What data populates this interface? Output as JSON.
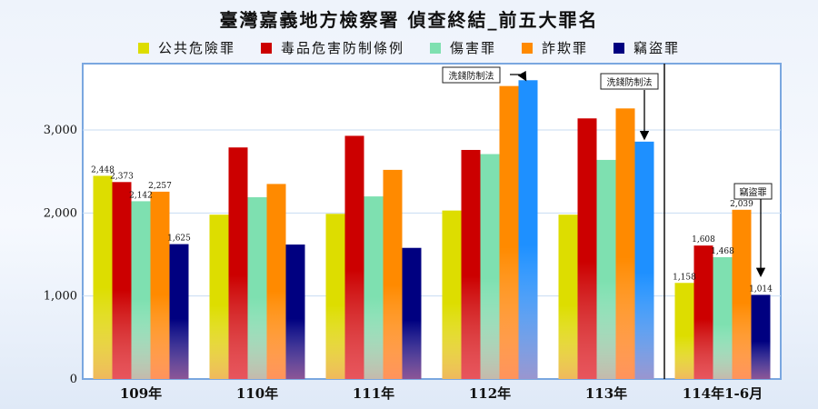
{
  "chart_data": {
    "type": "bar",
    "title": "臺灣嘉義地方檢察署  偵查終結_前五大罪名",
    "categories": [
      "109年",
      "110年",
      "111年",
      "112年",
      "113年",
      "114年1-6月"
    ],
    "series": [
      {
        "name": "公共危險罪",
        "color": "#dddd00",
        "values": [
          2448,
          1980,
          1990,
          2030,
          1980,
          1158
        ]
      },
      {
        "name": "毒品危害防制條例",
        "color": "#cc0000",
        "values": [
          2373,
          2790,
          2930,
          2760,
          3140,
          1608
        ]
      },
      {
        "name": "傷害罪",
        "color": "#7ee0b0",
        "values": [
          2142,
          2190,
          2200,
          2710,
          2640,
          1468
        ]
      },
      {
        "name": "詐欺罪",
        "color": "#ff8a00",
        "values": [
          2257,
          2350,
          2520,
          3530,
          3260,
          2039
        ]
      },
      {
        "name": "竊盜罪",
        "color": "#000080",
        "values": [
          1625,
          1620,
          1580,
          3600,
          2860,
          1014
        ]
      }
    ],
    "data_labels": [
      {
        "category": 0,
        "series": 0,
        "text": "2,448"
      },
      {
        "category": 0,
        "series": 1,
        "text": "2,373"
      },
      {
        "category": 0,
        "series": 2,
        "text": "2,142"
      },
      {
        "category": 0,
        "series": 3,
        "text": "2,257"
      },
      {
        "category": 0,
        "series": 4,
        "text": "1,625"
      },
      {
        "category": 5,
        "series": 0,
        "text": "1,158"
      },
      {
        "category": 5,
        "series": 1,
        "text": "1,608"
      },
      {
        "category": 5,
        "series": 2,
        "text": "1,468"
      },
      {
        "category": 5,
        "series": 3,
        "text": "2,039"
      },
      {
        "category": 5,
        "series": 4,
        "text": "1,014"
      }
    ],
    "highlights": [
      {
        "category": 3,
        "series": 4,
        "color": "#1e90ff"
      },
      {
        "category": 4,
        "series": 4,
        "color": "#1e90ff"
      }
    ],
    "annotations": [
      {
        "text": "洗錢防制法",
        "category": 3,
        "series": 4
      },
      {
        "text": "洗錢防制法",
        "category": 4,
        "series": 4
      },
      {
        "text": "竊盜罪",
        "category": 5,
        "series": 4
      }
    ],
    "separator_before_category": 5,
    "yticks": [
      0,
      1000,
      2000,
      3000
    ],
    "ytick_labels": [
      "0",
      "1,000",
      "2,000",
      "3,000"
    ],
    "ylim": [
      0,
      3800
    ],
    "grid": true,
    "legend_position": "top",
    "xlabel": "",
    "ylabel": ""
  }
}
